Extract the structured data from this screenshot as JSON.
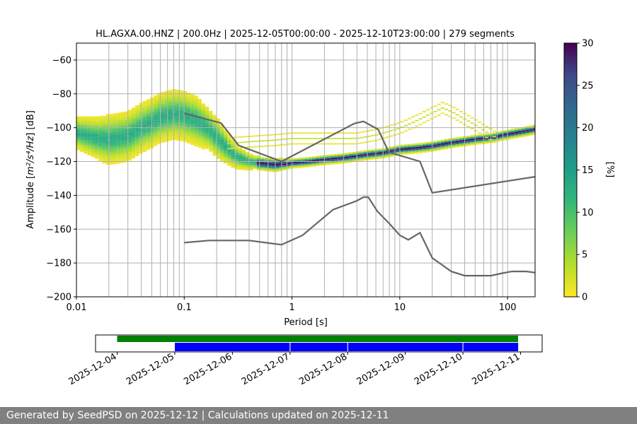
{
  "chart_data": [
    {
      "type": "heatmap",
      "title": "HL.AGXA.00.HNZ | 200.0Hz | 2025-12-05T00:00:00 - 2025-12-10T23:00:00 | 279 segments",
      "xlabel": "Period [s]",
      "ylabel_prefix": "Amplitude [",
      "ylabel_units": "m²/s⁴/Hz",
      "ylabel_suffix": "] [dB]",
      "x_scale": "log",
      "xlim": [
        0.01,
        180
      ],
      "ylim": [
        -200,
        -50
      ],
      "x_ticks": [
        {
          "value": 0.01,
          "label": "0.01"
        },
        {
          "value": 0.1,
          "label": "0.1"
        },
        {
          "value": 1,
          "label": "1"
        },
        {
          "value": 10,
          "label": "10"
        },
        {
          "value": 100,
          "label": "100"
        }
      ],
      "y_ticks": [
        -60,
        -80,
        -100,
        -120,
        -140,
        -160,
        -180,
        -200
      ],
      "grid": true,
      "colormap": "viridis_r",
      "colorbar": {
        "label": "[%]",
        "min": 0,
        "max": 30,
        "ticks": [
          0,
          5,
          10,
          15,
          20,
          25,
          30
        ]
      },
      "density_ridge": {
        "period": [
          0.01,
          0.015,
          0.02,
          0.03,
          0.04,
          0.05,
          0.06,
          0.08,
          0.1,
          0.13,
          0.17,
          0.2,
          0.25,
          0.3,
          0.4,
          0.5,
          0.7,
          1,
          1.5,
          2,
          3,
          5,
          7,
          10,
          15,
          20,
          30,
          50,
          70,
          100,
          150,
          180
        ],
        "amplitude_db": [
          -103,
          -106,
          -107,
          -105,
          -100,
          -97,
          -94,
          -92,
          -93,
          -96,
          -101,
          -106,
          -112,
          -117,
          -120,
          -121,
          -122,
          -121,
          -120,
          -119,
          -118,
          -116,
          -115,
          -113,
          -112,
          -111,
          -109,
          -107,
          -106,
          -104,
          -102,
          -101
        ],
        "spread_db": [
          4,
          5,
          6,
          6,
          6,
          6,
          6,
          6,
          6,
          6,
          5,
          5,
          4,
          3,
          2,
          1.5,
          1.5,
          1,
          1,
          1,
          1,
          1,
          1,
          1,
          1,
          1,
          1,
          1,
          1,
          1,
          1,
          1
        ]
      },
      "secondary_mode": {
        "period": [
          0.25,
          0.4,
          0.7,
          1,
          2,
          4,
          6,
          10,
          15,
          20,
          25,
          30,
          50,
          80
        ],
        "amplitude_db": [
          -109,
          -108,
          -107,
          -106,
          -106,
          -106,
          -104,
          -100,
          -95,
          -91,
          -88,
          -90,
          -98,
          -106
        ]
      },
      "series": [
        {
          "name": "",
          "period": [
            0.1,
            0.17,
            0.4,
            0.8,
            1.25,
            2.4,
            4.0,
            4.6,
            5.1,
            6.2,
            8.0,
            10.0,
            12.0,
            15.4,
            20.0,
            30.0,
            40.0,
            60.0,
            70.0,
            90.0,
            110.0,
            150.0,
            180.0
          ],
          "amplitude_db": [
            -168,
            -166.7,
            -166.7,
            -169.2,
            -163.7,
            -148.5,
            -143.2,
            -141.1,
            -141.1,
            -149.5,
            -156.7,
            -163.6,
            -166.3,
            -162.1,
            -177.0,
            -185.0,
            -187.5,
            -187.5,
            -187.5,
            -186.0,
            -185.0,
            -185.0,
            -185.7
          ]
        },
        {
          "name": "",
          "period": [
            0.1,
            0.22,
            0.32,
            0.8,
            3.8,
            4.6,
            6.3,
            7.9,
            15.4,
            20.0,
            180.0
          ],
          "amplitude_db": [
            -91.5,
            -97.3,
            -110.5,
            -120.0,
            -97.5,
            -96.3,
            -101.0,
            -114.5,
            -120.0,
            -138.5,
            -129.0
          ]
        }
      ]
    },
    {
      "type": "timeline",
      "x_ticks": [
        "2025-12-04",
        "2025-12-05",
        "2025-12-06",
        "2025-12-07",
        "2025-12-08",
        "2025-12-09",
        "2025-12-10",
        "2025-12-11"
      ],
      "bars": [
        {
          "color": "#008000",
          "start": "2025-12-04T00:00",
          "end": "2025-12-10T23:00"
        },
        {
          "color": "#0000ff",
          "start": "2025-12-05T00:00",
          "end": "2025-12-06T23:50"
        },
        {
          "color": "#0000ff",
          "start": "2025-12-07T00:10",
          "end": "2025-12-07T23:50"
        },
        {
          "color": "#0000ff",
          "start": "2025-12-08T00:10",
          "end": "2025-12-09T23:50"
        },
        {
          "color": "#0000ff",
          "start": "2025-12-10T00:10",
          "end": "2025-12-10T23:00"
        }
      ]
    }
  ],
  "footer": {
    "text": "Generated by SeedPSD on 2025-12-12 | Calculations updated on 2025-12-11"
  },
  "colors": {
    "noise_model": "#666666",
    "grid": "#b0b0b0",
    "footer_bg": "#808080"
  }
}
